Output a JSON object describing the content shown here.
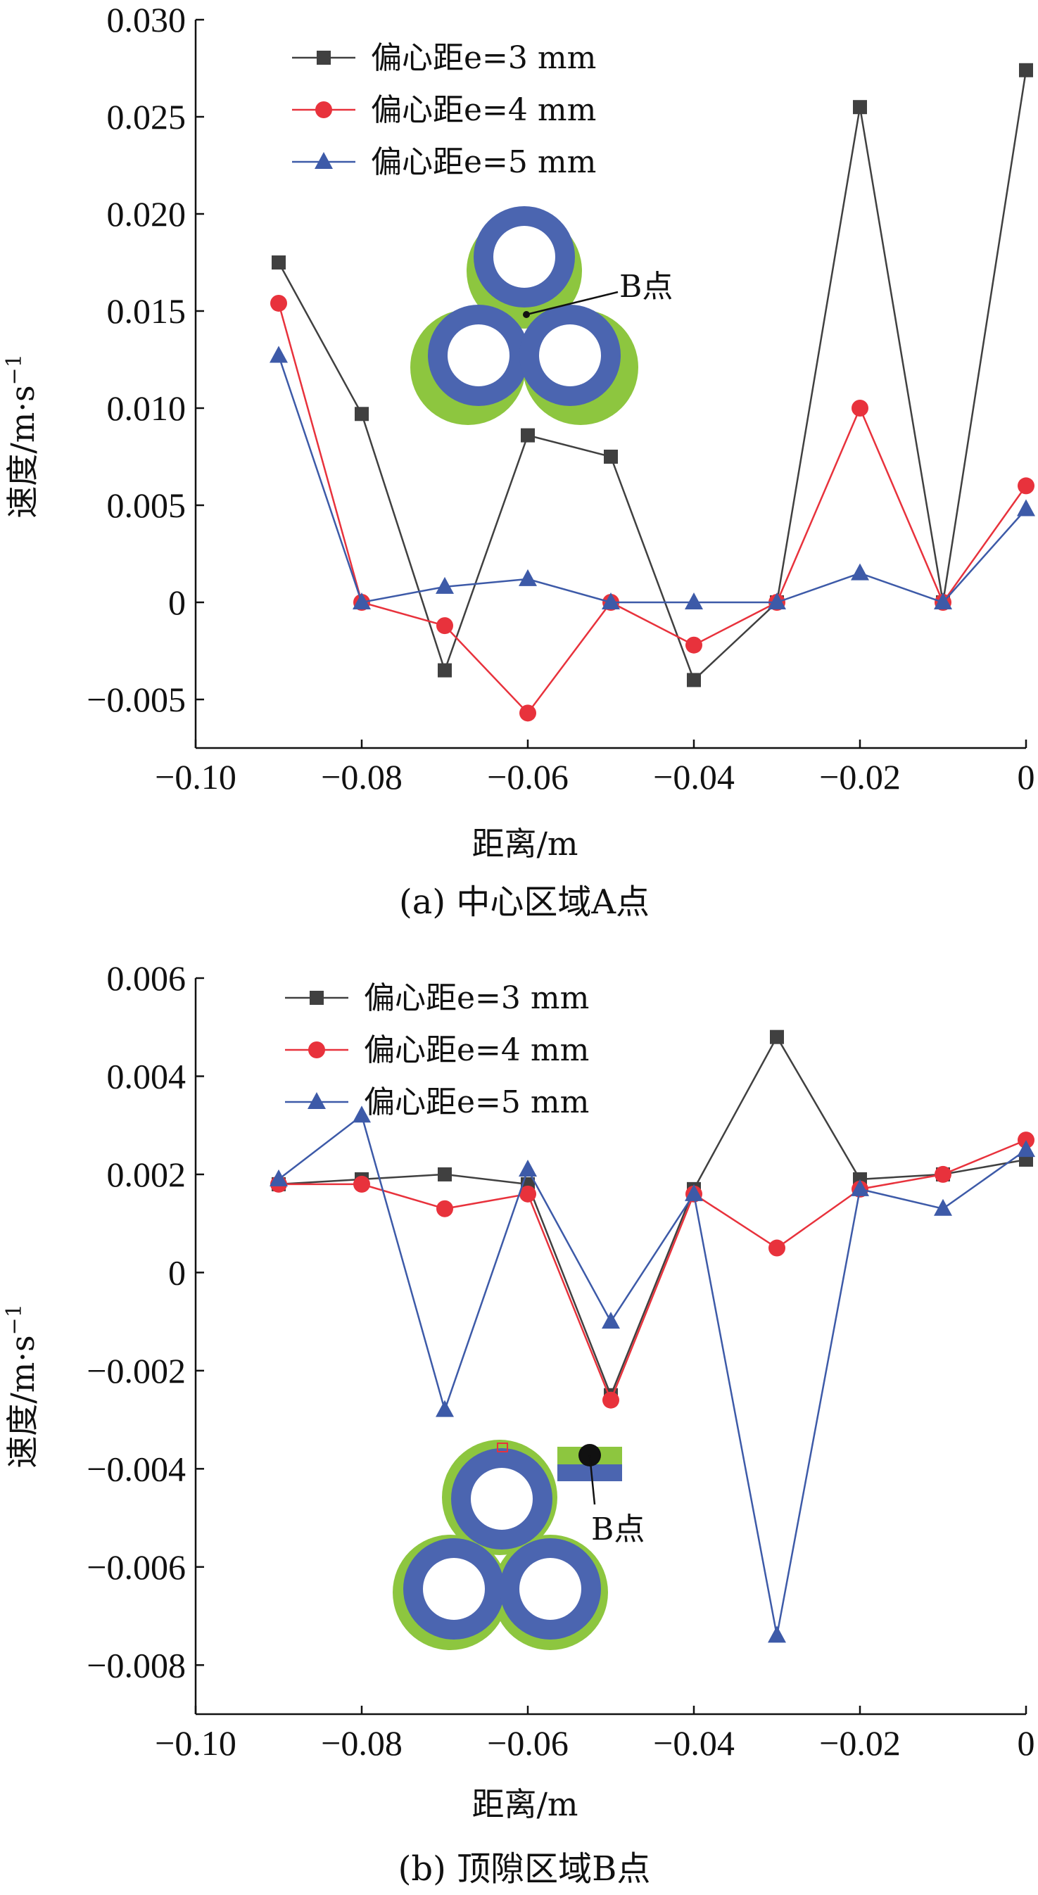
{
  "chart_data": [
    {
      "type": "line",
      "caption": "(a) 中心区域A点",
      "xlabel": "距离/m",
      "ylabel": "速度/m·s",
      "ylabel_sup": "−1",
      "x": [
        -0.09,
        -0.08,
        -0.07,
        -0.06,
        -0.05,
        -0.04,
        -0.03,
        -0.02,
        -0.01,
        0
      ],
      "xlim": [
        -0.1,
        0
      ],
      "ylim": [
        -0.0075,
        0.03
      ],
      "xticks": [
        -0.1,
        -0.08,
        -0.06,
        -0.04,
        -0.02,
        0
      ],
      "xtick_labels": [
        "−0.10",
        "−0.08",
        "−0.06",
        "−0.04",
        "−0.02",
        "0"
      ],
      "yticks": [
        -0.005,
        0,
        0.005,
        0.01,
        0.015,
        0.02,
        0.025,
        0.03
      ],
      "ytick_labels": [
        "−0.005",
        "0",
        "0.005",
        "0.010",
        "0.015",
        "0.020",
        "0.025",
        "0.030"
      ],
      "legend_position": "top-left",
      "series": [
        {
          "name": "偏心距e=3 mm",
          "color": "#404040",
          "marker": "square",
          "values": [
            0.0175,
            0.0097,
            -0.0035,
            0.0086,
            0.0075,
            -0.004,
            0.0,
            0.0255,
            0.0,
            0.0274
          ]
        },
        {
          "name": "偏心距e=4 mm",
          "color": "#e8323c",
          "marker": "circle",
          "values": [
            0.0154,
            0.0,
            -0.0012,
            -0.0057,
            0.0,
            -0.0022,
            0.0,
            0.01,
            0.0,
            0.006
          ]
        },
        {
          "name": "偏心距e=5 mm",
          "color": "#3d5aa8",
          "marker": "triangle",
          "values": [
            0.0127,
            0.0,
            0.0008,
            0.0012,
            0.0,
            0.0,
            0.0,
            0.0015,
            0.0,
            0.0048
          ]
        }
      ],
      "inset": {
        "label": "B点",
        "colors": {
          "outer": "#8dc63f",
          "inner": "#4b65b0",
          "core": "#ffffff"
        }
      }
    },
    {
      "type": "line",
      "caption": "(b) 顶隙区域B点",
      "xlabel": "距离/m",
      "ylabel": "速度/m·s",
      "ylabel_sup": "−1",
      "x": [
        -0.09,
        -0.08,
        -0.07,
        -0.06,
        -0.05,
        -0.04,
        -0.03,
        -0.02,
        -0.01,
        0
      ],
      "xlim": [
        -0.1,
        0
      ],
      "ylim": [
        -0.009,
        0.006
      ],
      "xticks": [
        -0.1,
        -0.08,
        -0.06,
        -0.04,
        -0.02,
        0
      ],
      "xtick_labels": [
        "−0.10",
        "−0.08",
        "−0.06",
        "−0.04",
        "−0.02",
        "0"
      ],
      "yticks": [
        -0.008,
        -0.006,
        -0.004,
        -0.002,
        0,
        0.002,
        0.004,
        0.006
      ],
      "ytick_labels": [
        "−0.008",
        "−0.006",
        "−0.004",
        "−0.002",
        "0",
        "0.002",
        "0.004",
        "0.006"
      ],
      "legend_position": "top-left",
      "series": [
        {
          "name": "偏心距e=3 mm",
          "color": "#404040",
          "marker": "square",
          "values": [
            0.0018,
            0.0019,
            0.002,
            0.0018,
            -0.0025,
            0.0017,
            0.0048,
            0.0019,
            0.002,
            0.0023
          ]
        },
        {
          "name": "偏心距e=4 mm",
          "color": "#e8323c",
          "marker": "circle",
          "values": [
            0.0018,
            0.0018,
            0.0013,
            0.0016,
            -0.0026,
            0.0016,
            0.0005,
            0.0017,
            0.002,
            0.0027
          ]
        },
        {
          "name": "偏心距e=5 mm",
          "color": "#3d5aa8",
          "marker": "triangle",
          "values": [
            0.0019,
            0.0032,
            -0.0028,
            0.0021,
            -0.001,
            0.0016,
            -0.0074,
            0.0017,
            0.0013,
            0.0025
          ]
        }
      ],
      "inset": {
        "label": "B点",
        "colors": {
          "outer": "#8dc63f",
          "inner": "#4b65b0",
          "core": "#ffffff",
          "point": "#111111"
        }
      }
    }
  ]
}
